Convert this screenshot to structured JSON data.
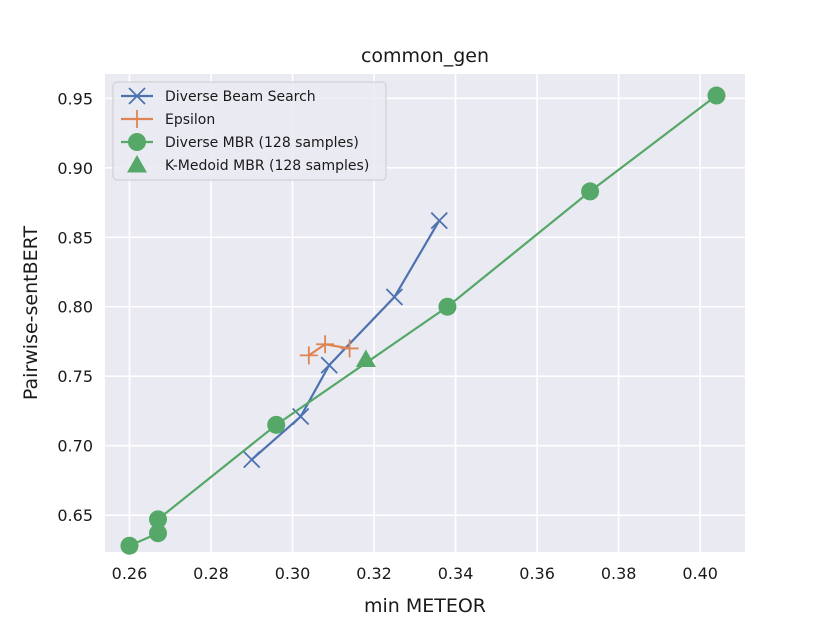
{
  "chart_data": {
    "type": "line",
    "title": "common_gen",
    "xlabel": "min METEOR",
    "ylabel": "Pairwise-sentBERT",
    "xlim": [
      0.254,
      0.411
    ],
    "ylim": [
      0.6235,
      0.9675
    ],
    "x_ticks": [
      0.26,
      0.28,
      0.3,
      0.32,
      0.34,
      0.36,
      0.38,
      0.4
    ],
    "x_tick_labels": [
      "0.26",
      "0.28",
      "0.30",
      "0.32",
      "0.34",
      "0.36",
      "0.38",
      "0.40"
    ],
    "y_ticks": [
      0.65,
      0.7,
      0.75,
      0.8,
      0.85,
      0.9,
      0.95
    ],
    "y_tick_labels": [
      "0.65",
      "0.70",
      "0.75",
      "0.80",
      "0.85",
      "0.90",
      "0.95"
    ],
    "grid": true,
    "background": "#eaeaf2",
    "legend_position": "top-left",
    "series": [
      {
        "name": "Diverse Beam Search",
        "color": "#4c72b0",
        "marker": "x",
        "line": true,
        "points": [
          [
            0.29,
            0.69
          ],
          [
            0.302,
            0.721
          ],
          [
            0.309,
            0.758
          ],
          [
            0.325,
            0.807
          ],
          [
            0.336,
            0.862
          ]
        ]
      },
      {
        "name": "Epsilon",
        "color": "#dd8452",
        "marker": "+",
        "line": true,
        "points": [
          [
            0.304,
            0.765
          ],
          [
            0.308,
            0.773
          ],
          [
            0.314,
            0.77
          ]
        ]
      },
      {
        "name": "Diverse MBR (128 samples)",
        "color": "#55a868",
        "marker": "circle",
        "line": true,
        "points": [
          [
            0.26,
            0.628
          ],
          [
            0.267,
            0.637
          ],
          [
            0.267,
            0.647
          ],
          [
            0.296,
            0.715
          ],
          [
            0.338,
            0.8
          ],
          [
            0.373,
            0.883
          ],
          [
            0.404,
            0.952
          ]
        ]
      },
      {
        "name": "K-Medoid MBR (128 samples)",
        "color": "#55a868",
        "marker": "triangle",
        "line": false,
        "points": [
          [
            0.318,
            0.762
          ]
        ]
      }
    ]
  }
}
